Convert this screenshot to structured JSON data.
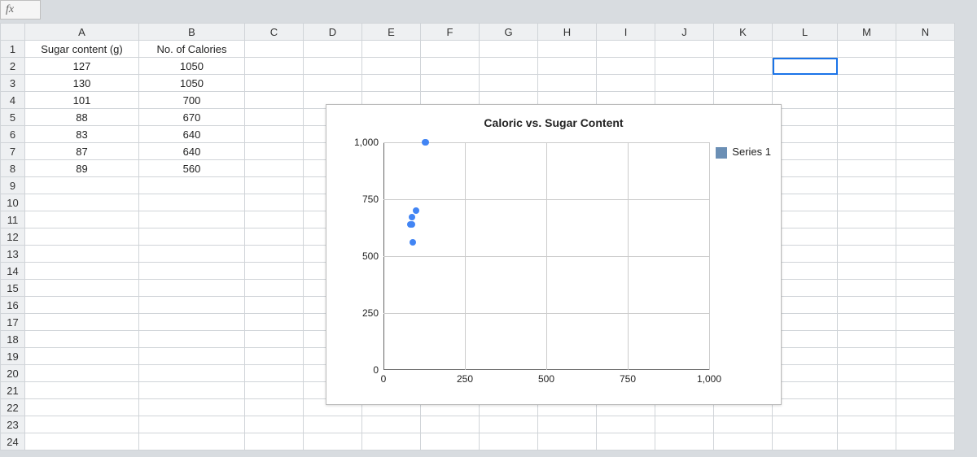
{
  "formula_bar": {
    "fx_label": "fx"
  },
  "grid": {
    "column_letters": [
      "A",
      "B",
      "C",
      "D",
      "E",
      "F",
      "G",
      "H",
      "I",
      "J",
      "K",
      "L",
      "M",
      "N"
    ],
    "row_count": 24,
    "selected_cell": "L2",
    "headers": {
      "A": "Sugar content (g)",
      "B": "No. of Calories"
    },
    "data": [
      {
        "A": "127",
        "B": "1050"
      },
      {
        "A": "130",
        "B": "1050"
      },
      {
        "A": "101",
        "B": "700"
      },
      {
        "A": "88",
        "B": "670"
      },
      {
        "A": "83",
        "B": "640"
      },
      {
        "A": "87",
        "B": "640"
      },
      {
        "A": "89",
        "B": "560"
      }
    ]
  },
  "chart": {
    "type": "scatter",
    "title": "Caloric vs. Sugar Content",
    "legend_label": "Series 1",
    "series_color": "#4285f4",
    "legend_swatch_color": "#6b8fb5",
    "background_color": "#ffffff",
    "grid_color": "#cccccc",
    "axis_color": "#666666",
    "title_fontsize": 14,
    "label_fontsize": 12,
    "xlim": [
      0,
      1000
    ],
    "ylim": [
      0,
      1000
    ],
    "x_ticks": [
      0,
      250,
      500,
      750,
      1000
    ],
    "y_ticks": [
      0,
      250,
      500,
      750,
      1000
    ],
    "y_tick_labels": [
      "0",
      "250",
      "500",
      "750",
      "1,000"
    ],
    "x_tick_labels": [
      "0",
      "250",
      "500",
      "750",
      "1,000"
    ],
    "points": [
      {
        "x": 127,
        "y": 1050
      },
      {
        "x": 130,
        "y": 1050
      },
      {
        "x": 101,
        "y": 700
      },
      {
        "x": 88,
        "y": 670
      },
      {
        "x": 83,
        "y": 640
      },
      {
        "x": 87,
        "y": 640
      },
      {
        "x": 89,
        "y": 560
      }
    ],
    "marker_size": 8
  }
}
